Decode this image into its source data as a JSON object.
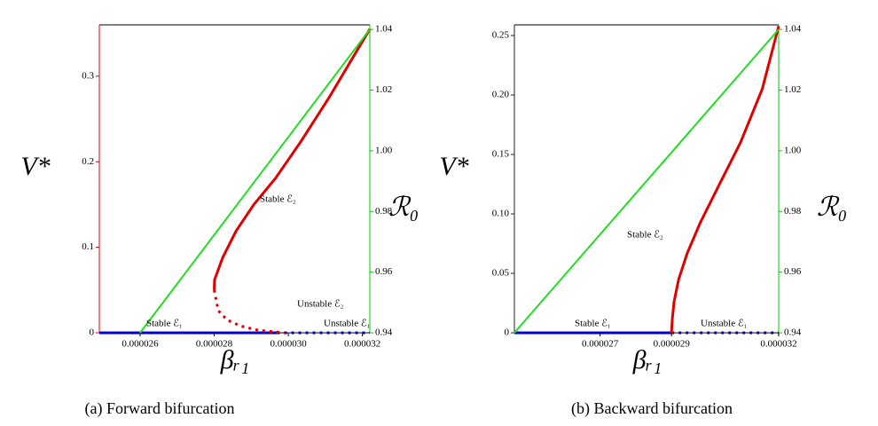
{
  "chart_data": [
    {
      "type": "line",
      "caption": "(a)  Forward bifurcation",
      "ylabel": "V*",
      "xlabel": "βᵣ₁",
      "y2label": "ℛ₀",
      "xlim": [
        2.49e-05,
        3.22e-05
      ],
      "xticks": [
        2.6e-05,
        2.8e-05,
        {
          "value": 3e-05,
          "label": "0.000030"
        },
        3.2e-05
      ],
      "ylim": [
        0,
        0.36
      ],
      "yticks": [
        0,
        0.1,
        0.2,
        0.3
      ],
      "y2lim": [
        0.94,
        1.0415
      ],
      "y2ticks": [
        0.94,
        0.96,
        0.98,
        {
          "value": 1.0,
          "label": "1.00"
        },
        1.02,
        1.04
      ],
      "left_axis_color": "#e00000",
      "right_axis_color": "#00cc00",
      "series": [
        {
          "color": "#0000c8",
          "style": "solid",
          "x": [
            2.49e-05,
            2.97e-05
          ],
          "values": [
            0,
            0
          ]
        },
        {
          "color": "#0000c8",
          "style": "dotted",
          "x": [
            2.97e-05,
            3.22e-05
          ],
          "values": [
            0,
            0
          ]
        },
        {
          "color": "#e00000",
          "style": "solid",
          "x": [
            2.8e-05,
            2.801e-05,
            2.823e-05,
            2.859e-05,
            2.907e-05,
            2.966e-05,
            3.033e-05,
            3.11e-05,
            3.22e-05
          ],
          "values": [
            0.05,
            0.062,
            0.088,
            0.119,
            0.15,
            0.181,
            0.223,
            0.275,
            0.355
          ]
        },
        {
          "color": "#e00000",
          "style": "dotted",
          "x": [
            2.8e-05,
            2.811e-05,
            2.835e-05,
            2.871e-05,
            2.919e-05,
            2.99e-05
          ],
          "values": [
            0.05,
            0.026,
            0.015,
            0.008,
            0.003,
            0
          ]
        },
        {
          "color": "#22dd22",
          "style": "solid",
          "axis": "y2",
          "x": [
            2.6e-05,
            3.22e-05
          ],
          "values": [
            0.94,
            1.04
          ]
        }
      ],
      "annotations": [
        "Stable  ℰ₁",
        "Unstable ℰ₂",
        "Unstable ℰ₁",
        "Stable ℰ₂"
      ]
    },
    {
      "type": "line",
      "caption": "(b) Backward bifurcation",
      "ylabel": "V*",
      "xlabel": "βᵣ₁",
      "y2label": "ℛ₀",
      "xlim": [
        2.46e-05,
        3.2e-05
      ],
      "xticks": [
        2.7e-05,
        2.9e-05,
        3.2e-05
      ],
      "ylim": [
        0,
        0.259
      ],
      "yticks": [
        0,
        0.05,
        {
          "value": 0.1,
          "label": "0.10"
        },
        0.15,
        {
          "value": 0.2,
          "label": "0.20"
        },
        0.25
      ],
      "y2lim": [
        0.94,
        1.0415
      ],
      "y2ticks": [
        0.94,
        0.96,
        0.98,
        {
          "value": 1.0,
          "label": "1.00"
        },
        1.02,
        1.04
      ],
      "left_axis_color": "#222222",
      "right_axis_color": "#00cc00",
      "series": [
        {
          "color": "#0000c8",
          "style": "solid",
          "x": [
            2.46e-05,
            2.9e-05
          ],
          "values": [
            0,
            0
          ]
        },
        {
          "color": "#0000c8",
          "style": "dotted",
          "x": [
            2.9e-05,
            3.2e-05
          ],
          "values": [
            0,
            0
          ]
        },
        {
          "color": "#e00000",
          "style": "solid",
          "x": [
            2.9e-05,
            2.902e-05,
            2.907e-05,
            2.92e-05,
            2.944e-05,
            2.981e-05,
            3.031e-05,
            3.093e-05,
            3.154e-05,
            3.2e-05
          ],
          "values": [
            0,
            0.011,
            0.026,
            0.045,
            0.067,
            0.093,
            0.123,
            0.16,
            0.205,
            0.258
          ]
        },
        {
          "color": "#22dd22",
          "style": "solid",
          "axis": "y2",
          "x": [
            2.46e-05,
            3.2e-05
          ],
          "values": [
            0.94,
            1.04
          ]
        }
      ],
      "annotations": [
        "Stable  ℰ₁",
        "Unstable ℰ₁",
        "Stable ℰ₂"
      ]
    }
  ]
}
